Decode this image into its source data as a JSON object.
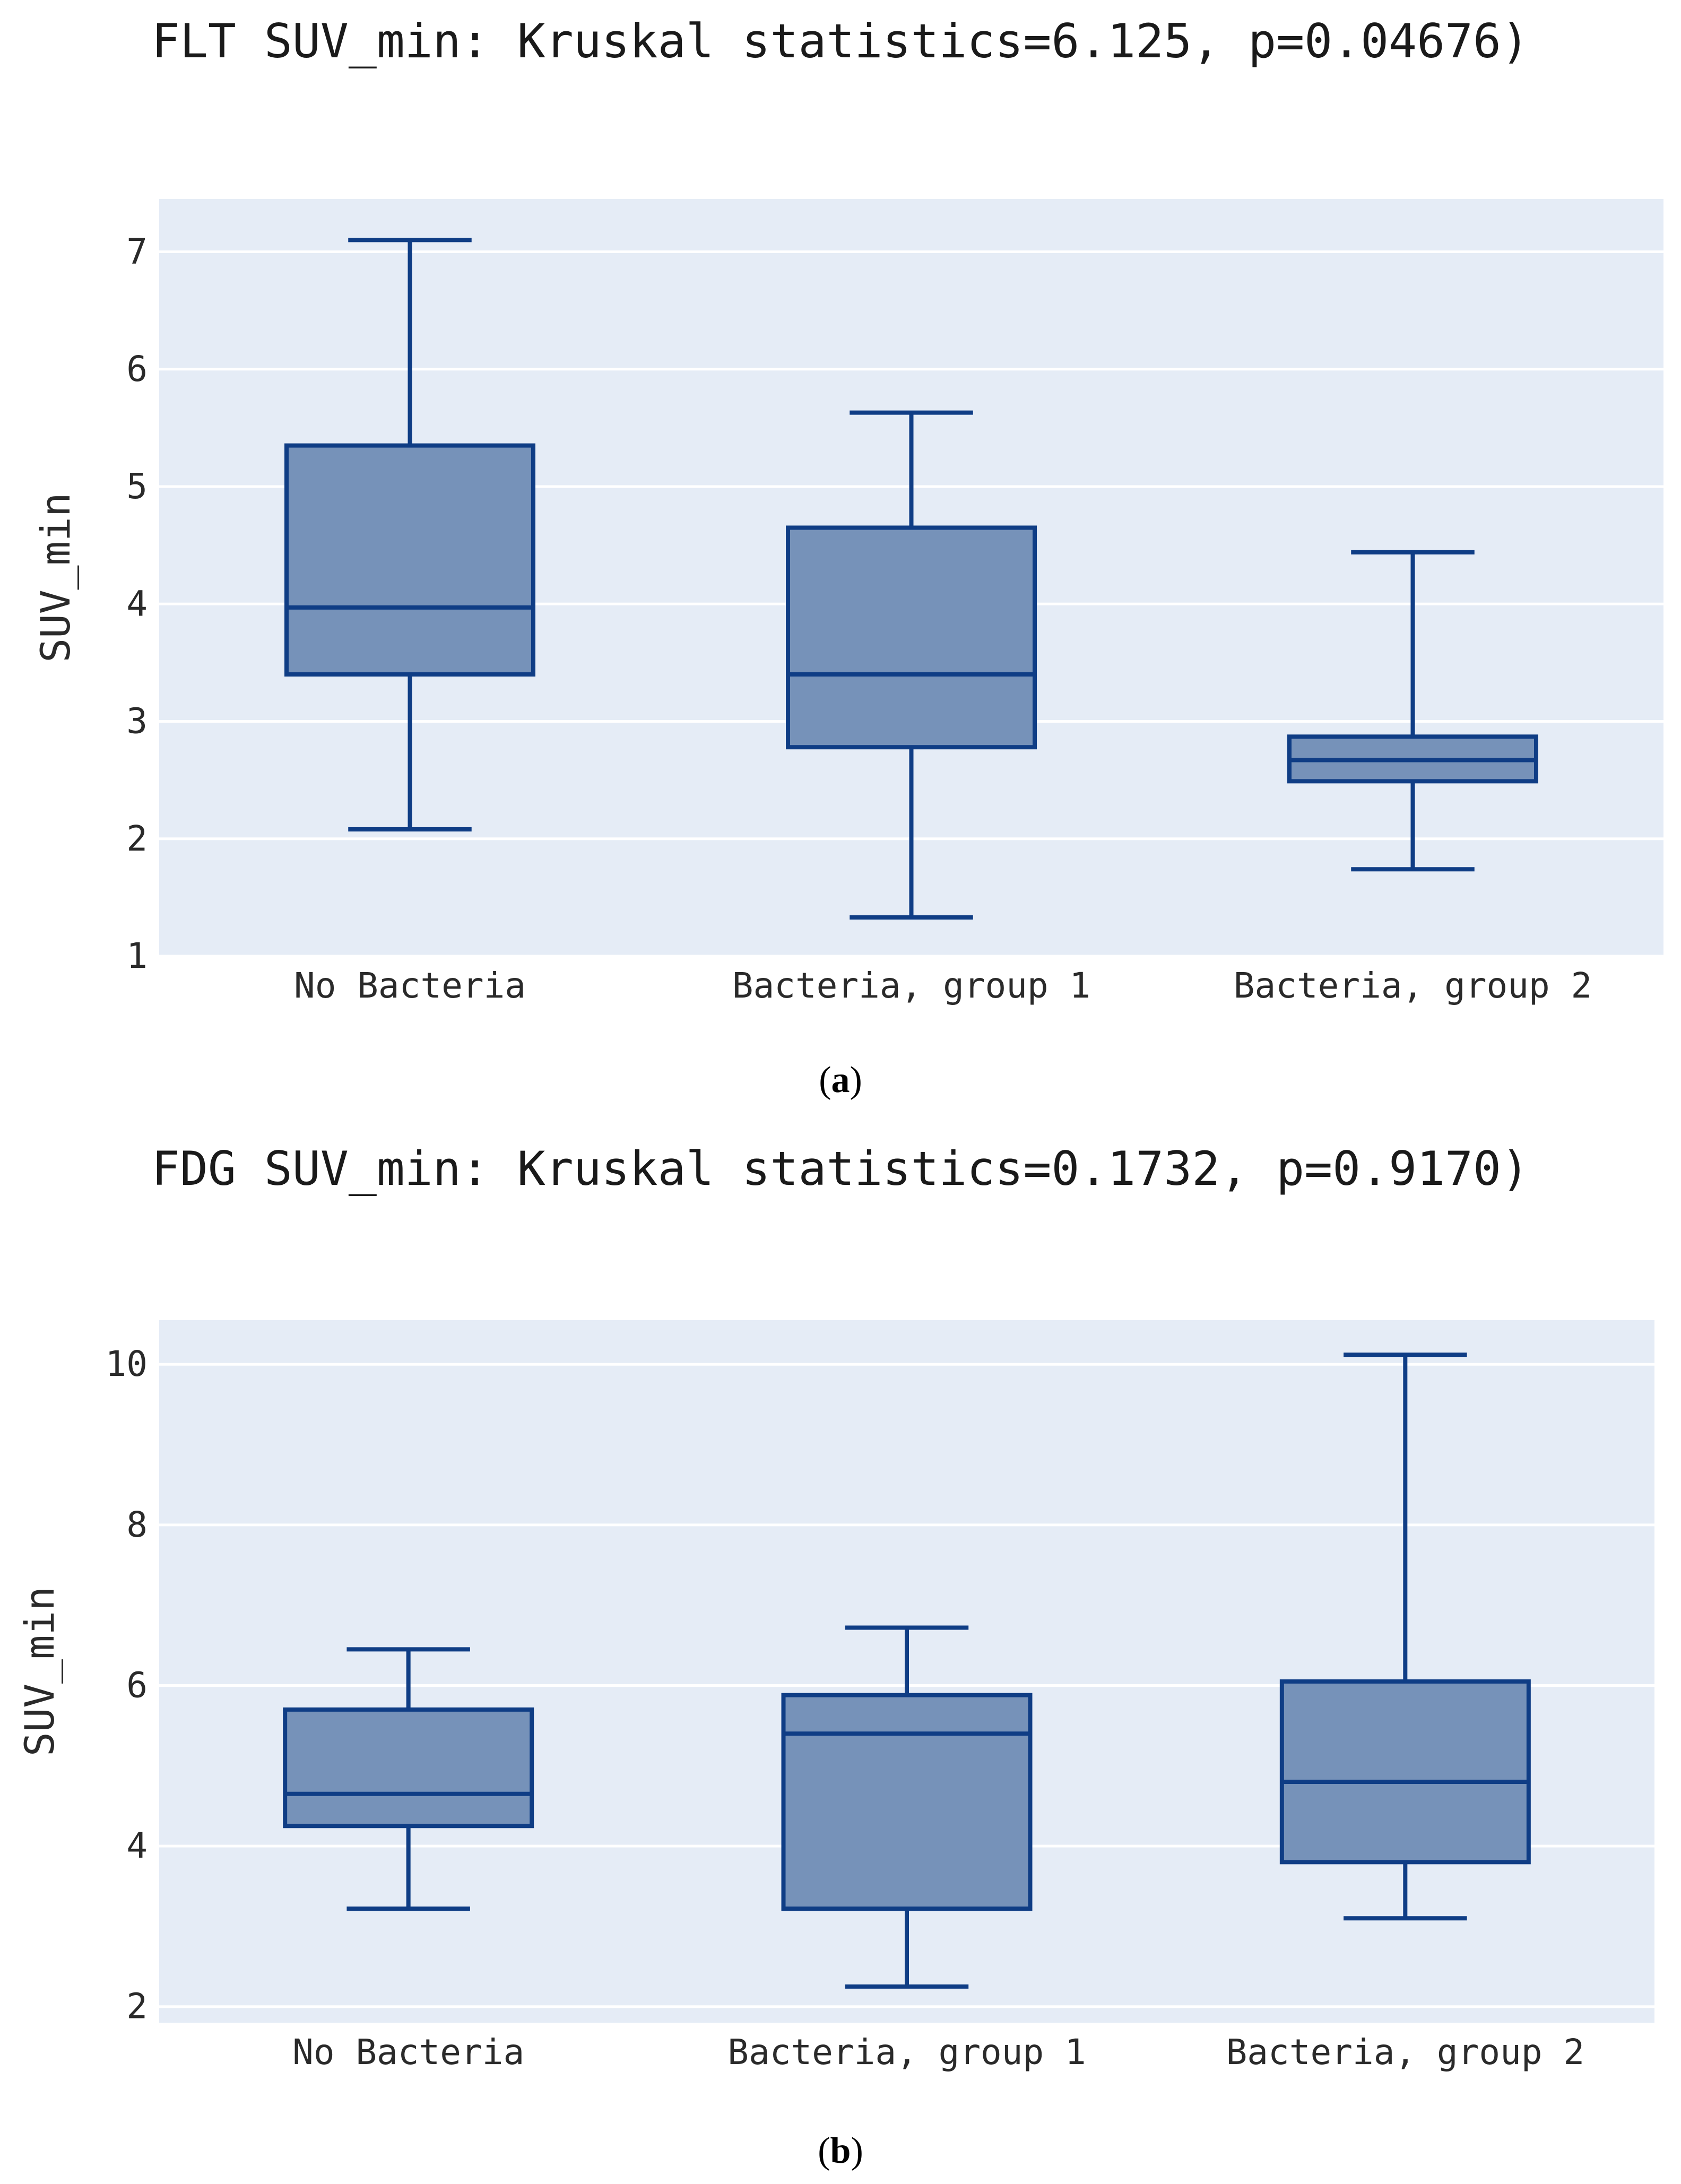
{
  "colors": {
    "plot_bg": "#e5ecf6",
    "grid": "#ffffff",
    "box_fill": "#7692b9",
    "box_line": "#0f3d85"
  },
  "chart_data": [
    {
      "type": "box",
      "panel_label": "a",
      "title": "FLT SUV_min: Kruskal statistics=6.125, p=0.04676)",
      "xlabel": "",
      "ylabel": "SUV_min",
      "ylim": [
        1,
        7.45
      ],
      "yticks": [
        1,
        2,
        3,
        4,
        5,
        6,
        7
      ],
      "grid": true,
      "categories": [
        "No Bacteria",
        "Bacteria, group 1",
        "Bacteria, group 2"
      ],
      "series": [
        {
          "name": "No Bacteria",
          "min": 2.08,
          "q1": 3.4,
          "median": 3.97,
          "q3": 5.35,
          "max": 7.1
        },
        {
          "name": "Bacteria, group 1",
          "min": 1.33,
          "q1": 2.78,
          "median": 3.4,
          "q3": 4.65,
          "max": 5.63
        },
        {
          "name": "Bacteria, group 2",
          "min": 1.74,
          "q1": 2.49,
          "median": 2.67,
          "q3": 2.87,
          "max": 4.44
        }
      ]
    },
    {
      "type": "box",
      "panel_label": "b",
      "title": "FDG SUV_min: Kruskal statistics=0.1732, p=0.9170)",
      "xlabel": "",
      "ylabel": "SUV_min",
      "ylim": [
        1.8,
        10.55
      ],
      "yticks": [
        2,
        4,
        6,
        8,
        10
      ],
      "grid": true,
      "categories": [
        "No Bacteria",
        "Bacteria, group 1",
        "Bacteria, group 2"
      ],
      "series": [
        {
          "name": "No Bacteria",
          "min": 3.22,
          "q1": 4.25,
          "median": 4.65,
          "q3": 5.7,
          "max": 6.45
        },
        {
          "name": "Bacteria, group 1",
          "min": 2.25,
          "q1": 3.22,
          "median": 5.4,
          "q3": 5.88,
          "max": 6.72
        },
        {
          "name": "Bacteria, group 2",
          "min": 3.1,
          "q1": 3.8,
          "median": 4.8,
          "q3": 6.05,
          "max": 10.12
        }
      ]
    }
  ]
}
